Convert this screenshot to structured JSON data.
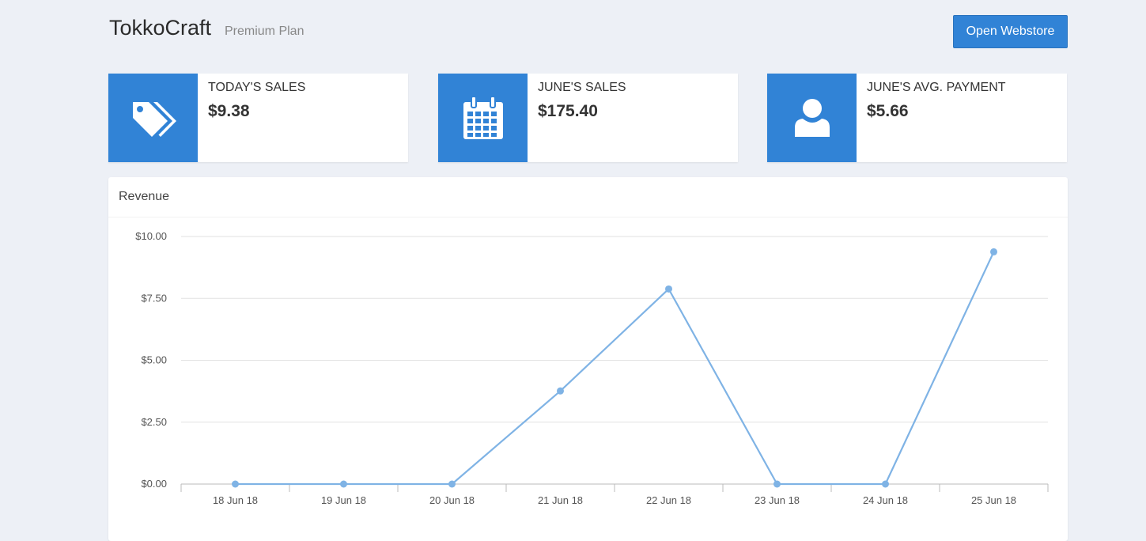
{
  "header": {
    "brand": "TokkoCraft",
    "plan": "Premium Plan",
    "open_webstore_label": "Open Webstore"
  },
  "accent_color": "#3183d6",
  "stats": [
    {
      "icon": "tags-icon",
      "label": "TODAY'S SALES",
      "value": "$9.38"
    },
    {
      "icon": "calendar-icon",
      "label": "JUNE'S SALES",
      "value": "$175.40"
    },
    {
      "icon": "user-icon",
      "label": "JUNE'S AVG. PAYMENT",
      "value": "$5.66"
    }
  ],
  "revenue_panel": {
    "title": "Revenue"
  },
  "chart_data": {
    "type": "line",
    "title": "Revenue",
    "categories": [
      "18 Jun 18",
      "19 Jun 18",
      "20 Jun 18",
      "21 Jun 18",
      "22 Jun 18",
      "23 Jun 18",
      "24 Jun 18",
      "25 Jun 18"
    ],
    "series": [
      {
        "values": [
          0,
          0,
          0,
          3.76,
          7.88,
          0,
          0,
          9.38
        ],
        "color": "#7fb3e5"
      }
    ],
    "yticks": [
      "$0.00",
      "$2.50",
      "$5.00",
      "$7.50",
      "$10.00"
    ],
    "ylim": [
      0,
      10
    ],
    "grid": true,
    "legend": "none"
  }
}
